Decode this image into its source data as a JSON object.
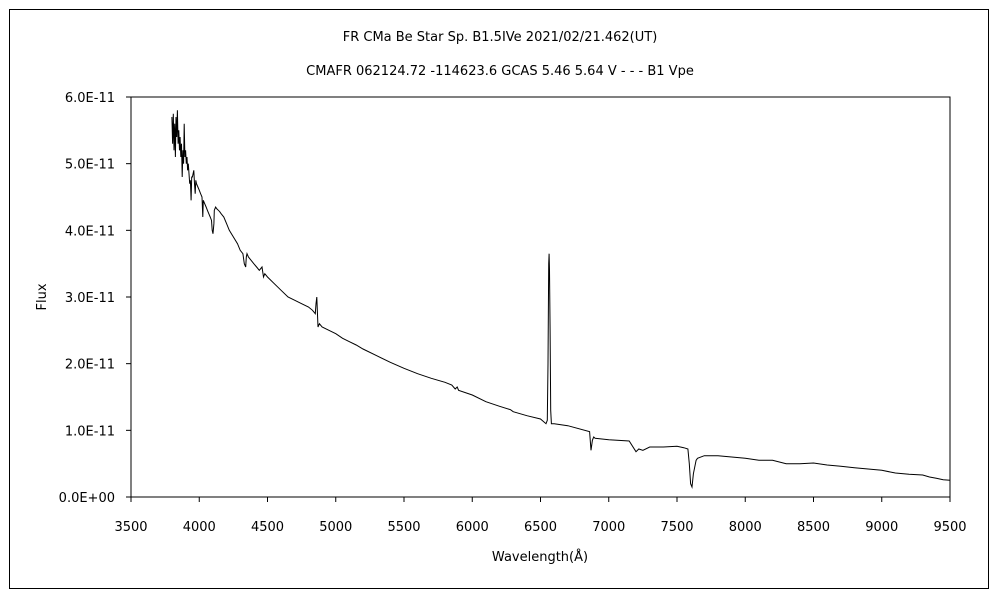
{
  "chart_data": {
    "type": "line",
    "title": "FR CMa    Be Star    Sp. B1.5IVe     2021/02/21.462(UT)",
    "subtitle": "CMAFR 062124.72 -114623.6 GCAS 5.46 5.64 V - - - B1 Vpe",
    "xlabel": "Wavelength(Å)",
    "ylabel": "Flux",
    "xlim": [
      3500,
      9500
    ],
    "ylim": [
      0,
      6e-11
    ],
    "x_ticks": [
      "3500",
      "4000",
      "4500",
      "5000",
      "5500",
      "6000",
      "6500",
      "7000",
      "7500",
      "8000",
      "8500",
      "9000",
      "9500"
    ],
    "y_ticks": [
      "0.0E+00",
      "1.0E-11",
      "2.0E-11",
      "3.0E-11",
      "4.0E-11",
      "5.0E-11",
      "6.0E-11"
    ],
    "grid": false,
    "legend": "none",
    "series": [
      {
        "x": [
          3800,
          3805,
          3810,
          3815,
          3820,
          3825,
          3830,
          3835,
          3840,
          3845,
          3850,
          3855,
          3860,
          3865,
          3870,
          3875,
          3880,
          3885,
          3890,
          3895,
          3900,
          3905,
          3910,
          3915,
          3920,
          3925,
          3930,
          3935,
          3940,
          3945,
          3950,
          3960,
          3965,
          3970,
          3975,
          3980,
          3990,
          4000,
          4010,
          4020,
          4026,
          4030,
          4040,
          4050,
          4060,
          4070,
          4080,
          4090,
          4095,
          4101,
          4107,
          4110,
          4120,
          4130,
          4140,
          4150,
          4160,
          4180,
          4200,
          4220,
          4250,
          4280,
          4300,
          4320,
          4330,
          4340,
          4345,
          4350,
          4360,
          4380,
          4400,
          4420,
          4440,
          4460,
          4471,
          4480,
          4500,
          4550,
          4600,
          4650,
          4700,
          4750,
          4800,
          4830,
          4850,
          4855,
          4861,
          4867,
          4870,
          4880,
          4900,
          4950,
          5000,
          5050,
          5100,
          5150,
          5200,
          5300,
          5400,
          5500,
          5600,
          5700,
          5800,
          5850,
          5875,
          5890,
          5900,
          6000,
          6100,
          6200,
          6280,
          6300,
          6400,
          6500,
          6540,
          6550,
          6555,
          6560,
          6563,
          6566,
          6570,
          6575,
          6580,
          6600,
          6700,
          6860,
          6870,
          6880,
          6890,
          6900,
          6950,
          7000,
          7150,
          7200,
          7220,
          7250,
          7300,
          7400,
          7500,
          7550,
          7580,
          7590,
          7600,
          7610,
          7620,
          7640,
          7650,
          7700,
          7800,
          7900,
          8000,
          8100,
          8200,
          8300,
          8400,
          8500,
          8600,
          8700,
          8800,
          8900,
          9000,
          9100,
          9200,
          9300,
          9350,
          9400,
          9450,
          9500
        ],
        "y": [
          5.7e-11,
          5.3e-11,
          5.75e-11,
          5.2e-11,
          5.6e-11,
          5.1e-11,
          5.7e-11,
          5.4e-11,
          5.8e-11,
          5.3e-11,
          5.5e-11,
          5.2e-11,
          5.4e-11,
          5.1e-11,
          5.3e-11,
          4.8e-11,
          5.2e-11,
          5e-11,
          5.6e-11,
          5.1e-11,
          5.2e-11,
          5e-11,
          5.1e-11,
          4.9e-11,
          5e-11,
          4.85e-11,
          4.7e-11,
          4.75e-11,
          4.45e-11,
          4.8e-11,
          4.8e-11,
          4.9e-11,
          4.7e-11,
          4.55e-11,
          4.75e-11,
          4.7e-11,
          4.65e-11,
          4.6e-11,
          4.55e-11,
          4.5e-11,
          4.2e-11,
          4.45e-11,
          4.4e-11,
          4.35e-11,
          4.3e-11,
          4.25e-11,
          4.2e-11,
          4.15e-11,
          4e-11,
          3.95e-11,
          4.1e-11,
          4.3e-11,
          4.35e-11,
          4.32e-11,
          4.3e-11,
          4.28e-11,
          4.25e-11,
          4.2e-11,
          4.1e-11,
          4e-11,
          3.9e-11,
          3.8e-11,
          3.7e-11,
          3.65e-11,
          3.5e-11,
          3.45e-11,
          3.6e-11,
          3.65e-11,
          3.6e-11,
          3.55e-11,
          3.5e-11,
          3.45e-11,
          3.4e-11,
          3.45e-11,
          3.3e-11,
          3.35e-11,
          3.3e-11,
          3.2e-11,
          3.1e-11,
          3e-11,
          2.95e-11,
          2.9e-11,
          2.85e-11,
          2.8e-11,
          2.75e-11,
          2.9e-11,
          3e-11,
          2.7e-11,
          2.55e-11,
          2.6e-11,
          2.55e-11,
          2.5e-11,
          2.45e-11,
          2.38e-11,
          2.33e-11,
          2.28e-11,
          2.22e-11,
          2.12e-11,
          2.02e-11,
          1.93e-11,
          1.85e-11,
          1.78e-11,
          1.72e-11,
          1.68e-11,
          1.62e-11,
          1.65e-11,
          1.6e-11,
          1.53e-11,
          1.43e-11,
          1.36e-11,
          1.31e-11,
          1.28e-11,
          1.22e-11,
          1.17e-11,
          1.1e-11,
          1.15e-11,
          2e-11,
          3.5e-11,
          3.65e-11,
          3.4e-11,
          2.5e-11,
          1.3e-11,
          1.1e-11,
          1.1e-11,
          1.07e-11,
          9.8e-12,
          7e-12,
          8.5e-12,
          9e-12,
          8.8e-12,
          8.7e-12,
          8.6e-12,
          8.4e-12,
          6.8e-12,
          7.2e-12,
          7e-12,
          7.5e-12,
          7.5e-12,
          7.6e-12,
          7.4e-12,
          7.2e-12,
          5e-12,
          2e-12,
          1.5e-12,
          3.5e-12,
          5.5e-12,
          5.8e-12,
          6.2e-12,
          6.2e-12,
          6e-12,
          5.8e-12,
          5.5e-12,
          5.5e-12,
          5e-12,
          5e-12,
          5.1e-12,
          4.8e-12,
          4.6e-12,
          4.4e-12,
          4.2e-12,
          4e-12,
          3.6e-12,
          3.4e-12,
          3.3e-12,
          3e-12,
          2.8e-12,
          2.6e-12,
          2.5e-12
        ]
      }
    ]
  }
}
